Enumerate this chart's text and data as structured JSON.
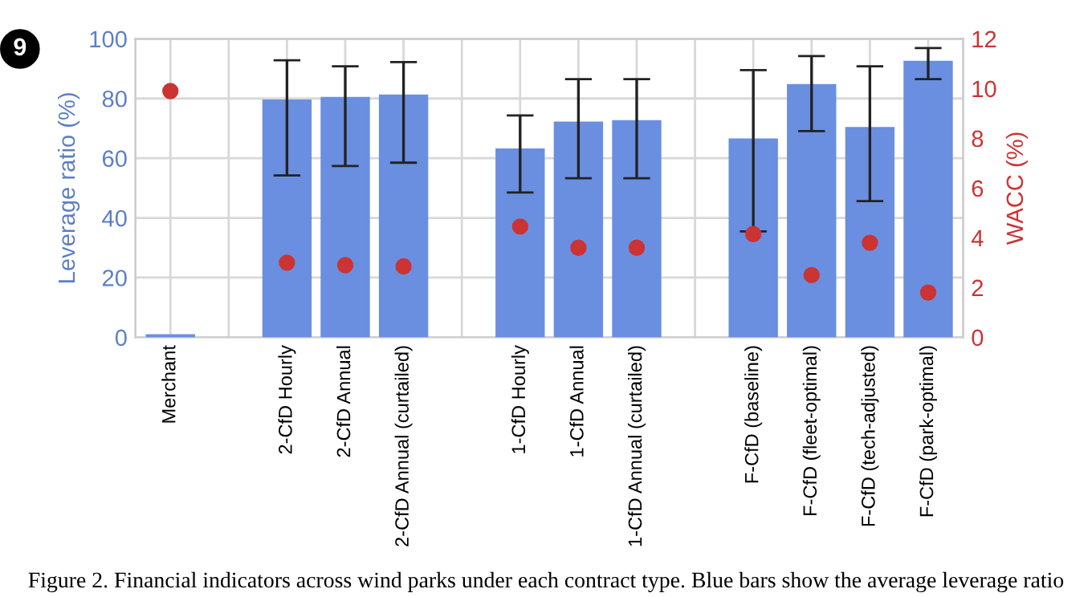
{
  "chart_data": {
    "type": "bar",
    "ylabel": "Leverage ratio (%)",
    "y2label": "WACC (%)",
    "categories": [
      "Merchant",
      null,
      "2-CfD Hourly",
      "2-CfD Annual",
      "2-CfD Annual (curtailed)",
      null,
      "1-CfD Hourly",
      "1-CfD Annual",
      "1-CfD Annual (curtailed)",
      null,
      "F-CfD (baseline)",
      "F-CfD (fleet-optimal)",
      "F-CfD (tech-adjusted)",
      "F-CfD (park-optimal)"
    ],
    "series": [
      {
        "color": "#6a8fe0",
        "values": [
          0.6,
          null,
          79.2,
          80.1,
          80.9,
          null,
          62.8,
          71.8,
          72.3,
          null,
          66.2,
          84.4,
          70,
          92.2
        ],
        "errors": [
          null,
          null,
          [
            54.2,
            92.8
          ],
          [
            57.4,
            90.8
          ],
          [
            58.5,
            92.2
          ],
          null,
          [
            48.5,
            74.3
          ],
          [
            53.3,
            86.5
          ],
          [
            53.3,
            86.5
          ],
          null,
          [
            35.5,
            89.5
          ],
          [
            69.1,
            94.2
          ],
          [
            45.6,
            90.8
          ],
          [
            86.5,
            96.9
          ]
        ]
      },
      {
        "type": "scatter",
        "axis": "y2",
        "color": "#cc3333",
        "marker": "circle",
        "values": [
          9.9,
          null,
          3.0,
          2.9,
          2.85,
          null,
          4.45,
          3.6,
          3.6,
          null,
          4.15,
          2.5,
          3.8,
          1.8
        ]
      }
    ],
    "ylim": [
      0,
      100
    ],
    "yticks": [
      0,
      20,
      40,
      60,
      80,
      100
    ],
    "y2lim": [
      0,
      12
    ],
    "y2ticks": [
      0,
      2,
      4,
      6,
      8,
      10,
      12
    ],
    "grid": true,
    "legend": false,
    "annotations": [
      "9",
      "Figure 2. Financial indicators across wind parks under each contract type. Blue bars show the average leverage ratio"
    ]
  }
}
